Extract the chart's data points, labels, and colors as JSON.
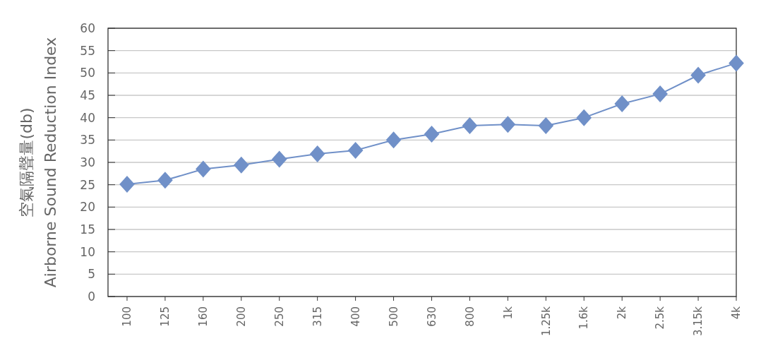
{
  "chart_data": {
    "type": "line",
    "ylabel": "空氣隔聲量(db)\nAirborne Sound Reduction Index",
    "categories": [
      "100",
      "125",
      "160",
      "200",
      "250",
      "315",
      "400",
      "500",
      "630",
      "800",
      "1k",
      "1.25k",
      "1.6k",
      "2k",
      "2.5k",
      "3.15k",
      "4k"
    ],
    "series": [
      {
        "color": "#7090c8",
        "values": [
          25.1,
          26.0,
          28.5,
          29.4,
          30.7,
          31.9,
          32.7,
          35.0,
          36.3,
          38.2,
          38.5,
          38.2,
          40.0,
          43.1,
          45.3,
          49.5,
          52.2
        ]
      }
    ],
    "ylim": [
      0,
      60
    ],
    "yticks": [
      0,
      5,
      10,
      15,
      20,
      25,
      30,
      35,
      40,
      45,
      50,
      55,
      60
    ],
    "grid": "y",
    "marker": "diamond",
    "line_style": "solid"
  }
}
